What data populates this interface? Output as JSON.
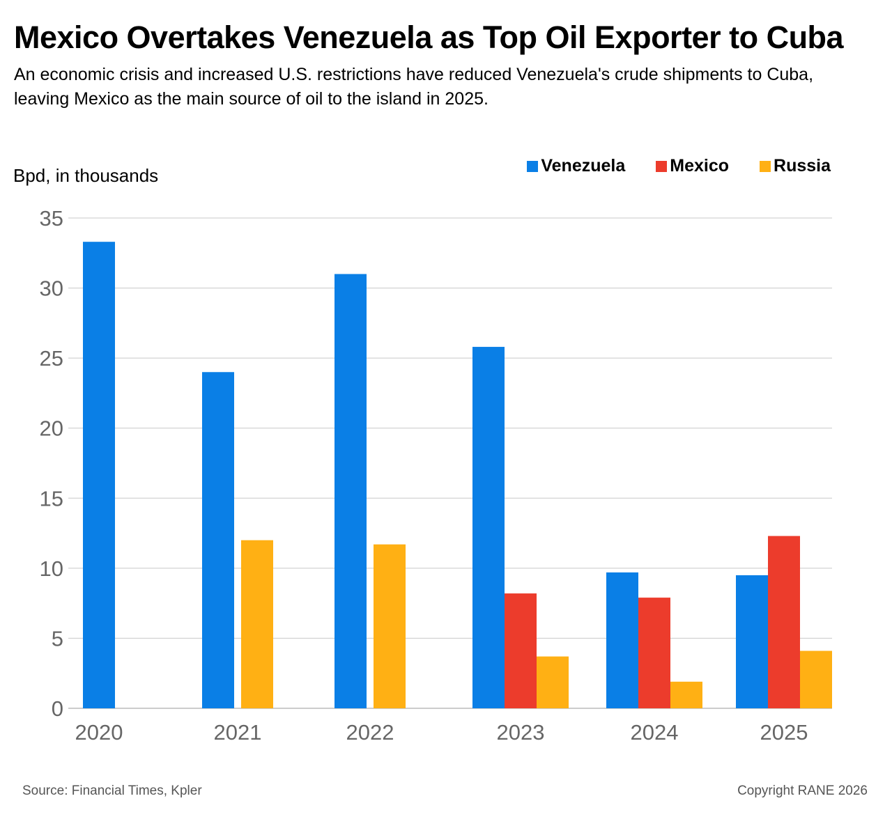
{
  "header": {
    "title": "Mexico Overtakes Venezuela as Top Oil Exporter to Cuba",
    "subtitle": "An economic crisis and increased U.S. restrictions have reduced Venezuela's crude shipments to Cuba, leaving Mexico as the main source of oil to the island in 2025."
  },
  "footer": {
    "source": "Source: Financial Times, Kpler",
    "copyright": "Copyright RANE 2026"
  },
  "colors": {
    "venezuela": "#0A7FE6",
    "mexico": "#EC3C2C",
    "russia": "#FFB014",
    "grid": "#c8c8c8",
    "tick_text": "#666666"
  },
  "chart_data": {
    "type": "bar",
    "ylabel": "Bpd, in thousands",
    "xlabel": "",
    "ylim": [
      0,
      35
    ],
    "yticks": [
      0,
      5,
      10,
      15,
      20,
      25,
      30,
      35
    ],
    "grid": true,
    "legend_position": "top-right",
    "categories": [
      "2020",
      "2021",
      "2022",
      "2023",
      "2024",
      "2025"
    ],
    "series": [
      {
        "name": "Venezuela",
        "color": "#0A7FE6",
        "values": [
          33.3,
          24.0,
          31.0,
          25.8,
          9.7,
          9.5
        ]
      },
      {
        "name": "Mexico",
        "color": "#EC3C2C",
        "values": [
          0,
          0,
          0,
          8.2,
          7.9,
          12.3
        ]
      },
      {
        "name": "Russia",
        "color": "#FFB014",
        "values": [
          0,
          12.0,
          11.7,
          3.7,
          1.9,
          4.1
        ]
      }
    ]
  }
}
